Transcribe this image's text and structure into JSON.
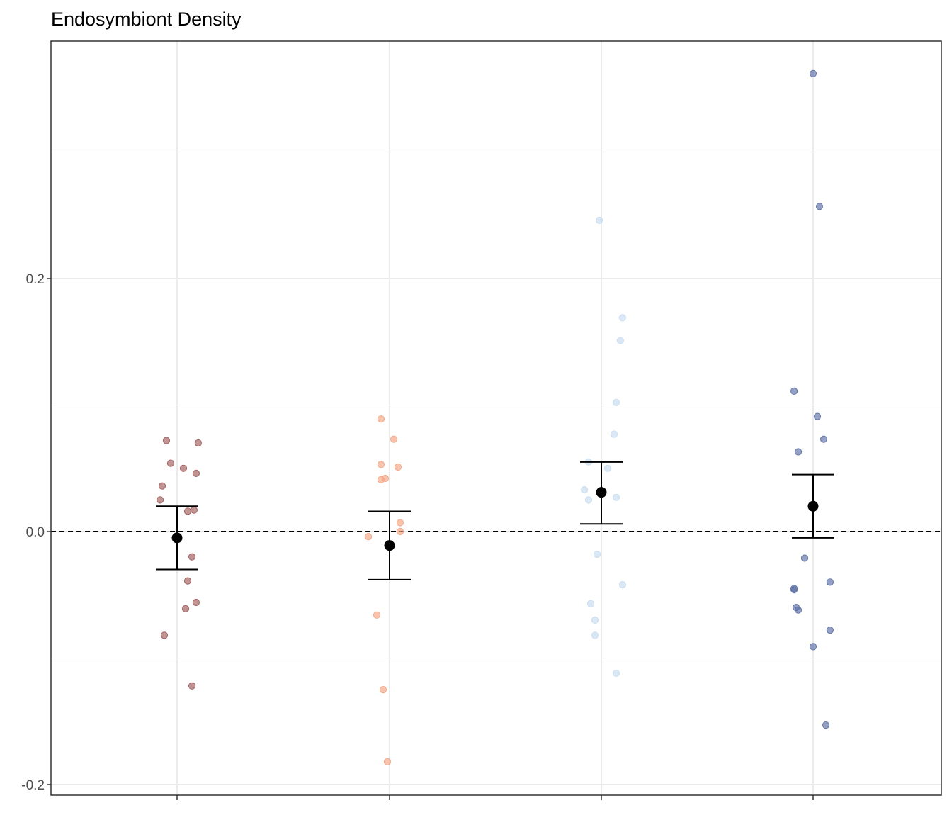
{
  "chart_data": {
    "type": "scatter",
    "title": "Endosymbiont Density",
    "xlabel": "",
    "ylabel": "",
    "categories": [
      "",
      "",
      "",
      ""
    ],
    "ylim": [
      -0.2,
      0.38
    ],
    "y_ticks": [
      -0.2,
      0.0,
      0.2
    ],
    "y_tick_labels": [
      "-0.2",
      "0.0",
      "0.2"
    ],
    "y_minor_gridlines": [
      -0.1,
      0.1,
      0.3
    ],
    "reference_line": {
      "y": 0.0,
      "style": "dashed",
      "color": "#000000"
    },
    "grid": true,
    "legend": "none",
    "colors": {
      "series": [
        "#a05a5a",
        "#f4a582",
        "#c6dbef",
        "#5a6fa5"
      ],
      "summary": "#000000",
      "grid": "#ebebeb",
      "panel_border": "#333333"
    },
    "series": [
      {
        "points": [
          {
            "x": 0.95,
            "y": 0.072
          },
          {
            "x": 1.1,
            "y": 0.07
          },
          {
            "x": 0.93,
            "y": 0.036
          },
          {
            "x": 1.03,
            "y": 0.05
          },
          {
            "x": 1.09,
            "y": 0.046
          },
          {
            "x": 0.97,
            "y": 0.054
          },
          {
            "x": 0.92,
            "y": 0.025
          },
          {
            "x": 1.05,
            "y": 0.016
          },
          {
            "x": 1.08,
            "y": 0.017
          },
          {
            "x": 1.07,
            "y": -0.02
          },
          {
            "x": 1.05,
            "y": -0.039
          },
          {
            "x": 1.09,
            "y": -0.056
          },
          {
            "x": 1.04,
            "y": -0.061
          },
          {
            "x": 0.94,
            "y": -0.082
          },
          {
            "x": 1.07,
            "y": -0.122
          }
        ],
        "mean": -0.005,
        "error_low": -0.03,
        "error_high": 0.02
      },
      {
        "points": [
          {
            "x": 1.96,
            "y": 0.089
          },
          {
            "x": 2.02,
            "y": 0.073
          },
          {
            "x": 1.96,
            "y": 0.053
          },
          {
            "x": 2.04,
            "y": 0.051
          },
          {
            "x": 1.96,
            "y": 0.041
          },
          {
            "x": 1.98,
            "y": 0.042
          },
          {
            "x": 2.05,
            "y": 0.007
          },
          {
            "x": 2.05,
            "y": 0.0
          },
          {
            "x": 1.9,
            "y": -0.004
          },
          {
            "x": 1.94,
            "y": -0.066
          },
          {
            "x": 1.97,
            "y": -0.125
          },
          {
            "x": 1.99,
            "y": -0.182
          }
        ],
        "mean": -0.011,
        "error_low": -0.038,
        "error_high": 0.016
      },
      {
        "points": [
          {
            "x": 2.99,
            "y": 0.246
          },
          {
            "x": 3.1,
            "y": 0.169
          },
          {
            "x": 3.09,
            "y": 0.151
          },
          {
            "x": 3.07,
            "y": 0.102
          },
          {
            "x": 3.06,
            "y": 0.077
          },
          {
            "x": 2.94,
            "y": 0.055
          },
          {
            "x": 3.03,
            "y": 0.05
          },
          {
            "x": 2.92,
            "y": 0.033
          },
          {
            "x": 3.07,
            "y": 0.027
          },
          {
            "x": 2.94,
            "y": 0.025
          },
          {
            "x": 2.98,
            "y": -0.018
          },
          {
            "x": 3.1,
            "y": -0.042
          },
          {
            "x": 2.95,
            "y": -0.057
          },
          {
            "x": 2.97,
            "y": -0.07
          },
          {
            "x": 2.97,
            "y": -0.082
          },
          {
            "x": 3.07,
            "y": -0.112
          }
        ],
        "mean": 0.031,
        "error_low": 0.006,
        "error_high": 0.055
      },
      {
        "points": [
          {
            "x": 4.0,
            "y": 0.362
          },
          {
            "x": 4.03,
            "y": 0.257
          },
          {
            "x": 3.91,
            "y": 0.111
          },
          {
            "x": 4.02,
            "y": 0.091
          },
          {
            "x": 4.05,
            "y": 0.073
          },
          {
            "x": 3.93,
            "y": 0.063
          },
          {
            "x": 3.96,
            "y": -0.021
          },
          {
            "x": 4.08,
            "y": -0.04
          },
          {
            "x": 3.91,
            "y": -0.045
          },
          {
            "x": 3.91,
            "y": -0.046
          },
          {
            "x": 3.92,
            "y": -0.06
          },
          {
            "x": 3.93,
            "y": -0.062
          },
          {
            "x": 4.08,
            "y": -0.078
          },
          {
            "x": 4.0,
            "y": -0.091
          },
          {
            "x": 4.06,
            "y": -0.153
          }
        ],
        "mean": 0.02,
        "error_low": -0.005,
        "error_high": 0.045
      }
    ]
  }
}
